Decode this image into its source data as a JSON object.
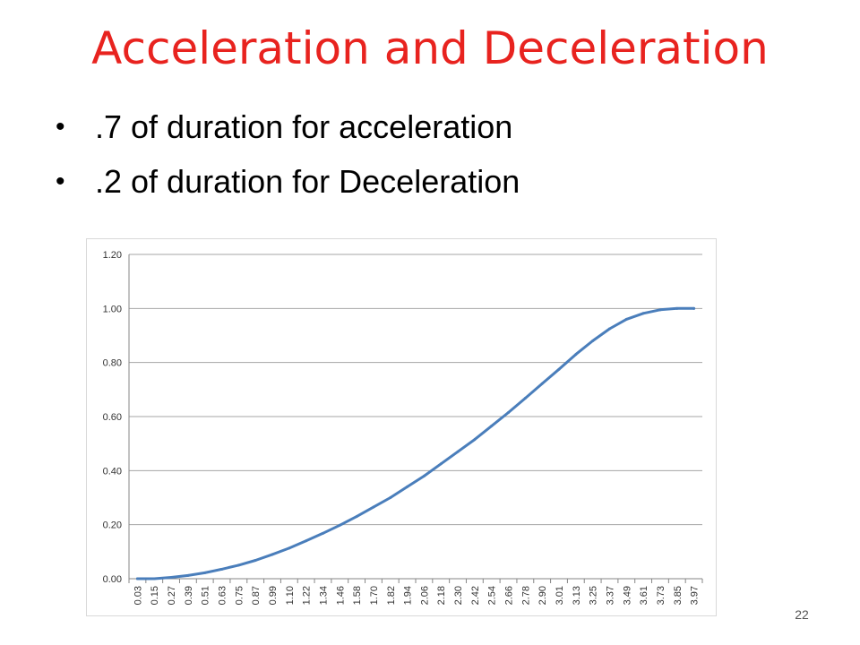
{
  "slide": {
    "title": "Acceleration  and Deceleration",
    "bullets": [
      ".7 of duration for acceleration",
      ".2 of duration for Deceleration"
    ],
    "page_number": "22"
  },
  "colors": {
    "title": "#e8231f",
    "series": "#4a7ebb",
    "gridline": "#a6a6a6"
  },
  "chart_data": {
    "type": "line",
    "title": "",
    "xlabel": "",
    "ylabel": "",
    "ylim": [
      0,
      1.2
    ],
    "yticks": [
      "0.00",
      "0.20",
      "0.40",
      "0.60",
      "0.80",
      "1.00",
      "1.20"
    ],
    "grid": true,
    "legend": "none",
    "xticks": [
      "0.03",
      "0.15",
      "0.27",
      "0.39",
      "0.51",
      "0.63",
      "0.75",
      "0.87",
      "0.99",
      "1.10",
      "1.22",
      "1.34",
      "1.46",
      "1.58",
      "1.70",
      "1.82",
      "1.94",
      "2.06",
      "2.18",
      "2.30",
      "2.42",
      "2.54",
      "2.66",
      "2.78",
      "2.90",
      "3.01",
      "3.13",
      "3.25",
      "3.37",
      "3.49",
      "3.61",
      "3.73",
      "3.85",
      "3.97"
    ],
    "series": [
      {
        "x": [
          0.03,
          0.15,
          0.27,
          0.39,
          0.51,
          0.63,
          0.75,
          0.87,
          0.99,
          1.1,
          1.22,
          1.34,
          1.46,
          1.58,
          1.7,
          1.82,
          1.94,
          2.06,
          2.18,
          2.3,
          2.42,
          2.54,
          2.66,
          2.78,
          2.9,
          3.01,
          3.13,
          3.25,
          3.37,
          3.49,
          3.61,
          3.73,
          3.85,
          3.97
        ],
        "values": [
          0.0,
          0.0,
          0.005,
          0.012,
          0.022,
          0.035,
          0.05,
          0.068,
          0.09,
          0.113,
          0.14,
          0.168,
          0.198,
          0.23,
          0.265,
          0.3,
          0.34,
          0.38,
          0.425,
          0.47,
          0.515,
          0.565,
          0.615,
          0.668,
          0.722,
          0.775,
          0.83,
          0.88,
          0.925,
          0.96,
          0.982,
          0.995,
          1.0,
          1.0
        ]
      }
    ]
  }
}
